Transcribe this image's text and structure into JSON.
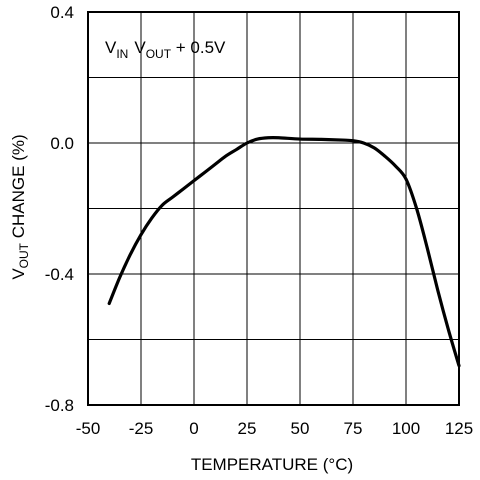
{
  "chart_data": {
    "type": "line",
    "title": "",
    "xlabel": "TEMPERATURE (°C)",
    "ylabel": {
      "base": "V",
      "sub": "OUT",
      "rest": " CHANGE (%)"
    },
    "annotation": {
      "v1": "V",
      "s1": "IN",
      "v2": "V",
      "s2": "OUT",
      "rest": " + 0.5V"
    },
    "xlim": [
      -50,
      125
    ],
    "ylim": [
      -0.8,
      0.4
    ],
    "xticks": [
      -50,
      -25,
      0,
      25,
      50,
      75,
      100,
      125
    ],
    "xtick_labels": [
      "-50",
      "-25",
      "0",
      "25",
      "50",
      "75",
      "100",
      "125"
    ],
    "yticks": [
      -0.8,
      -0.4,
      0.0,
      0.4
    ],
    "ytick_labels": [
      "-0.8",
      "-0.4",
      "0.0",
      "0.4"
    ],
    "grid": true,
    "grid_y_step": 0.2,
    "line_color": "#000000",
    "series": [
      {
        "x": [
          -40,
          -35,
          -30,
          -25,
          -20,
          -15,
          -10,
          -5,
          0,
          5,
          10,
          15,
          20,
          25,
          30,
          35,
          40,
          50,
          60,
          70,
          75,
          80,
          85,
          90,
          95,
          100,
          105,
          110,
          115,
          120,
          125
        ],
        "y": [
          -0.49,
          -0.41,
          -0.34,
          -0.28,
          -0.23,
          -0.19,
          -0.165,
          -0.14,
          -0.115,
          -0.09,
          -0.065,
          -0.04,
          -0.02,
          0.0,
          0.012,
          0.016,
          0.016,
          0.012,
          0.011,
          0.009,
          0.007,
          0.0,
          -0.015,
          -0.04,
          -0.07,
          -0.11,
          -0.2,
          -0.32,
          -0.45,
          -0.57,
          -0.68
        ]
      }
    ]
  }
}
